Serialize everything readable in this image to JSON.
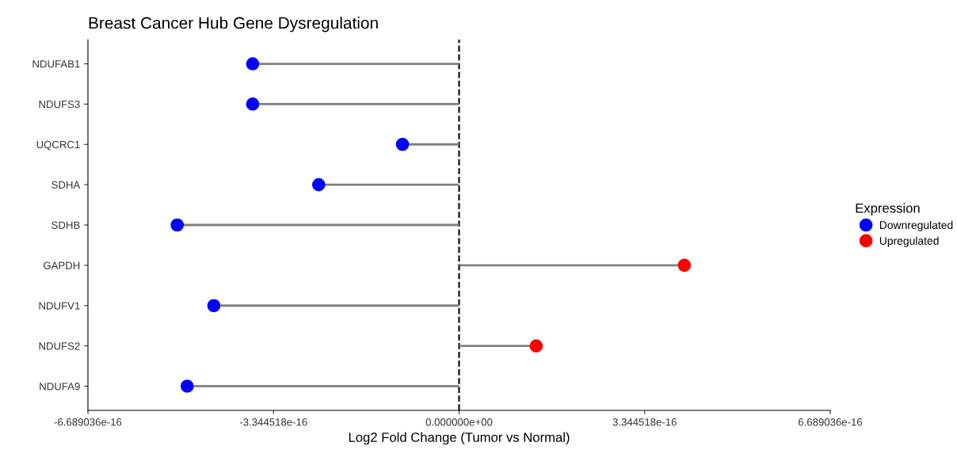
{
  "chart_data": {
    "type": "lollipop",
    "title": "Breast Cancer Hub Gene Dysregulation",
    "xlabel": "Log2 Fold Change (Tumor vs Normal)",
    "legend_title": "Expression",
    "orientation": "horizontal",
    "categories": [
      "NDUFAB1",
      "NDUFS3",
      "UQCRC1",
      "SDHA",
      "SDHB",
      "GAPDH",
      "NDUFV1",
      "NDUFS2",
      "NDUFA9"
    ],
    "series": [
      {
        "name": "Downregulated",
        "color": "#0000ff",
        "values": [
          -3.72e-16,
          -3.72e-16,
          -1.02e-16,
          -2.53e-16,
          -5.08e-16,
          null,
          -4.42e-16,
          null,
          -4.9e-16
        ]
      },
      {
        "name": "Upregulated",
        "color": "#ff0000",
        "values": [
          null,
          null,
          null,
          null,
          null,
          4.06e-16,
          null,
          1.39e-16,
          null
        ]
      }
    ],
    "xlim": [
      -6.689036e-16,
      6.689036e-16
    ],
    "xticks": [
      {
        "value": -6.689036e-16,
        "label": "-6.689036e-16"
      },
      {
        "value": -3.344518e-16,
        "label": "-3.344518e-16"
      },
      {
        "value": 0,
        "label": "0.000000e+00"
      },
      {
        "value": 3.344518e-16,
        "label": "3.344518e-16"
      },
      {
        "value": 6.689036e-16,
        "label": "6.689036e-16"
      }
    ],
    "ref_lines": [
      {
        "axis": "x",
        "value": 0,
        "color": "#000000",
        "line_style": "dashed"
      }
    ],
    "legend": "right",
    "grid": false,
    "marker": "circle"
  }
}
